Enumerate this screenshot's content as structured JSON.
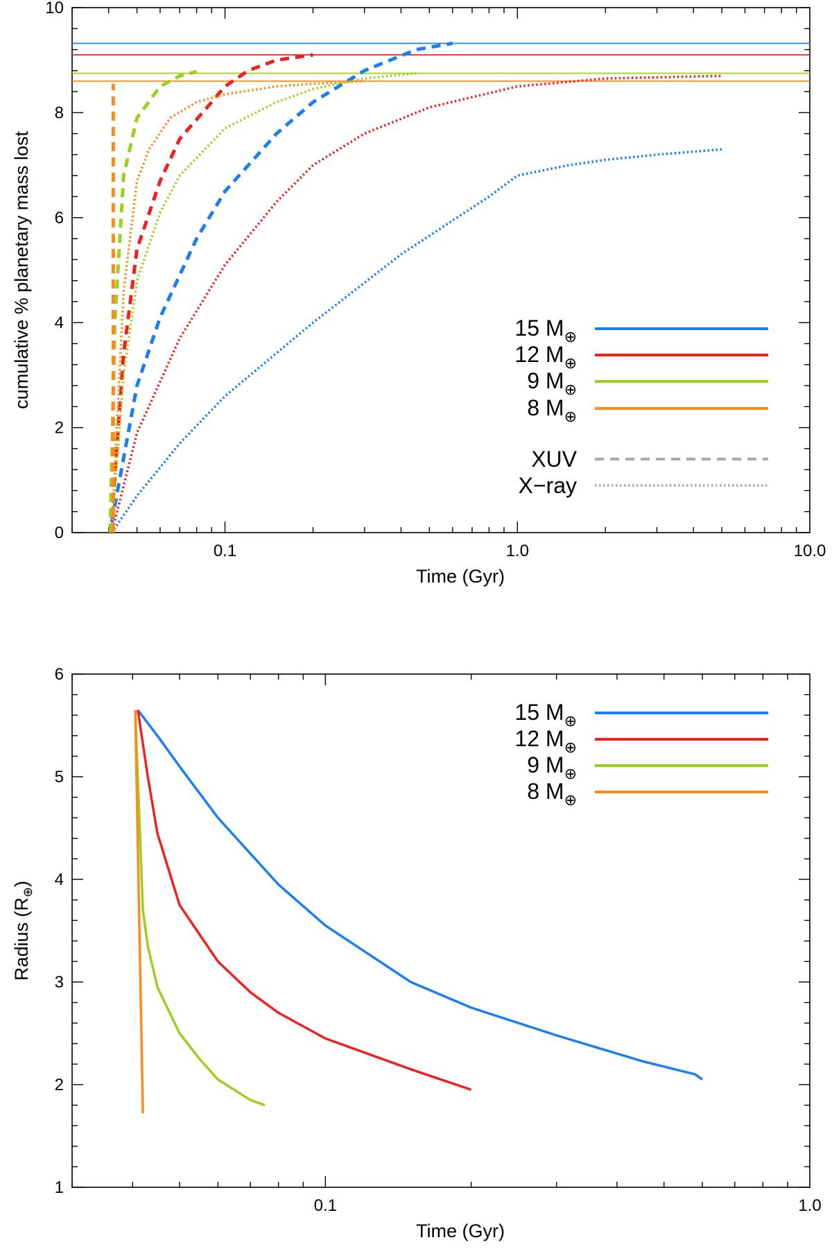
{
  "chart_data": [
    {
      "type": "line",
      "xscale": "log",
      "xlim": [
        0.03,
        10.0
      ],
      "ylim": [
        0,
        10
      ],
      "xlabel": "Time (Gyr)",
      "ylabel": "cumulative % planetary mass lost",
      "xticks": [
        {
          "value": 0.1,
          "label": "0.1"
        },
        {
          "value": 1.0,
          "label": "1.0"
        },
        {
          "value": 10.0,
          "label": "10.0"
        }
      ],
      "yticks": [
        {
          "value": 0,
          "label": "0"
        },
        {
          "value": 2,
          "label": "2"
        },
        {
          "value": 4,
          "label": "4"
        },
        {
          "value": 6,
          "label": "6"
        },
        {
          "value": 8,
          "label": "8"
        },
        {
          "value": 10,
          "label": "10"
        }
      ],
      "hlines": [
        {
          "name": "15 M⊕",
          "color": "#1b7ff0",
          "y": 9.32
        },
        {
          "name": "12 M⊕",
          "color": "#f02020",
          "y": 9.1
        },
        {
          "name": "9 M⊕",
          "color": "#9bd01f",
          "y": 8.75
        },
        {
          "name": "8 M⊕",
          "color": "#ff8a1a",
          "y": 8.6
        }
      ],
      "series": [
        {
          "name": "15 M⊕",
          "color": "#1b7ff0",
          "style": "dashed",
          "label": "XUV",
          "x": [
            0.041,
            0.05,
            0.06,
            0.08,
            0.1,
            0.15,
            0.2,
            0.3,
            0.45,
            0.6
          ],
          "y": [
            0.2,
            2.8,
            4.1,
            5.6,
            6.5,
            7.6,
            8.2,
            8.8,
            9.2,
            9.32
          ]
        },
        {
          "name": "15 M⊕",
          "color": "#1b7ff0",
          "style": "dotted",
          "label": "X-ray",
          "x": [
            0.041,
            0.05,
            0.07,
            0.1,
            0.2,
            0.4,
            0.8,
            1.0,
            1.5,
            2.0,
            3.0,
            5.0
          ],
          "y": [
            0.0,
            0.7,
            1.7,
            2.6,
            4.0,
            5.3,
            6.4,
            6.8,
            7.0,
            7.1,
            7.2,
            7.3
          ]
        },
        {
          "name": "12 M⊕",
          "color": "#f02020",
          "style": "dashed",
          "label": "XUV",
          "x": [
            0.041,
            0.045,
            0.05,
            0.06,
            0.07,
            0.09,
            0.1,
            0.12,
            0.15,
            0.2
          ],
          "y": [
            0.3,
            3.4,
            5.4,
            6.7,
            7.5,
            8.2,
            8.5,
            8.8,
            9.0,
            9.1
          ]
        },
        {
          "name": "12 M⊕",
          "color": "#f02020",
          "style": "dotted",
          "label": "X-ray",
          "x": [
            0.041,
            0.05,
            0.07,
            0.1,
            0.15,
            0.2,
            0.3,
            0.5,
            1.0,
            2.0,
            5.0
          ],
          "y": [
            0.0,
            1.9,
            3.7,
            5.1,
            6.3,
            7.0,
            7.6,
            8.1,
            8.5,
            8.65,
            8.7
          ]
        },
        {
          "name": "9 M⊕",
          "color": "#9bd01f",
          "style": "dashed",
          "label": "XUV",
          "x": [
            0.0405,
            0.042,
            0.045,
            0.05,
            0.06,
            0.07,
            0.08
          ],
          "y": [
            0.0,
            4.0,
            6.8,
            7.9,
            8.5,
            8.7,
            8.78
          ]
        },
        {
          "name": "9 M⊕",
          "color": "#9bd01f",
          "style": "dotted",
          "label": "X-ray",
          "x": [
            0.041,
            0.045,
            0.05,
            0.06,
            0.07,
            0.1,
            0.15,
            0.2,
            0.3,
            0.45
          ],
          "y": [
            0.0,
            3.0,
            4.8,
            6.1,
            6.8,
            7.7,
            8.2,
            8.45,
            8.65,
            8.75
          ]
        },
        {
          "name": "8 M⊕",
          "color": "#ff8a1a",
          "style": "dashed",
          "label": "XUV",
          "x": [
            0.0415,
            0.0415
          ],
          "y": [
            0.0,
            8.55
          ]
        },
        {
          "name": "8 M⊕",
          "color": "#ff8a1a",
          "style": "dotted",
          "label": "X-ray",
          "x": [
            0.041,
            0.045,
            0.05,
            0.055,
            0.065,
            0.08,
            0.1,
            0.15,
            0.2,
            0.3
          ],
          "y": [
            0.0,
            4.6,
            6.7,
            7.3,
            7.9,
            8.2,
            8.35,
            8.5,
            8.55,
            8.6
          ]
        }
      ],
      "legend": {
        "position": "lower-right",
        "masses": [
          {
            "label": "15 M",
            "sub": "⊕",
            "color": "#1b7ff0"
          },
          {
            "label": "12 M",
            "sub": "⊕",
            "color": "#f02020"
          },
          {
            "label": "9 M",
            "sub": "⊕",
            "color": "#9bd01f"
          },
          {
            "label": "8 M",
            "sub": "⊕",
            "color": "#ff8a1a"
          }
        ],
        "styles": [
          {
            "label": "XUV",
            "style": "dashed",
            "color": "#aaaaaa"
          },
          {
            "label": "X−ray",
            "style": "dotted",
            "color": "#aaaaaa"
          }
        ]
      }
    },
    {
      "type": "line",
      "xscale": "log",
      "xlim": [
        0.03,
        1.0
      ],
      "ylim": [
        1,
        6
      ],
      "xlabel": "Time (Gyr)",
      "ylabel": "Radius (R",
      "ylabel_sub": "⊕",
      "ylabel_end": ")",
      "xticks": [
        {
          "value": 0.1,
          "label": "0.1"
        },
        {
          "value": 1.0,
          "label": "1.0"
        }
      ],
      "yticks": [
        {
          "value": 1,
          "label": "1"
        },
        {
          "value": 2,
          "label": "2"
        },
        {
          "value": 3,
          "label": "3"
        },
        {
          "value": 4,
          "label": "4"
        },
        {
          "value": 5,
          "label": "5"
        },
        {
          "value": 6,
          "label": "6"
        }
      ],
      "series": [
        {
          "name": "15 M⊕",
          "color": "#1b7ff0",
          "x": [
            0.041,
            0.045,
            0.05,
            0.06,
            0.08,
            0.1,
            0.15,
            0.2,
            0.3,
            0.45,
            0.58,
            0.6
          ],
          "y": [
            5.65,
            5.4,
            5.1,
            4.6,
            3.95,
            3.55,
            3.0,
            2.75,
            2.48,
            2.23,
            2.1,
            2.05
          ]
        },
        {
          "name": "12 M⊕",
          "color": "#f02020",
          "x": [
            0.041,
            0.043,
            0.045,
            0.05,
            0.06,
            0.07,
            0.08,
            0.1,
            0.15,
            0.2
          ],
          "y": [
            5.65,
            5.0,
            4.45,
            3.75,
            3.2,
            2.9,
            2.7,
            2.45,
            2.15,
            1.95
          ]
        },
        {
          "name": "9 M⊕",
          "color": "#9bd01f",
          "x": [
            0.0405,
            0.042,
            0.043,
            0.045,
            0.05,
            0.055,
            0.06,
            0.07,
            0.075
          ],
          "y": [
            5.65,
            3.7,
            3.35,
            2.95,
            2.5,
            2.25,
            2.05,
            1.85,
            1.8
          ]
        },
        {
          "name": "8 M⊕",
          "color": "#ff8a1a",
          "x": [
            0.0405,
            0.042
          ],
          "y": [
            5.65,
            1.72
          ]
        }
      ],
      "legend": {
        "position": "top-right",
        "masses": [
          {
            "label": "15 M",
            "sub": "⊕",
            "color": "#1b7ff0"
          },
          {
            "label": "12 M",
            "sub": "⊕",
            "color": "#f02020"
          },
          {
            "label": "9 M",
            "sub": "⊕",
            "color": "#9bd01f"
          },
          {
            "label": "8 M",
            "sub": "⊕",
            "color": "#ff8a1a"
          }
        ]
      }
    }
  ]
}
